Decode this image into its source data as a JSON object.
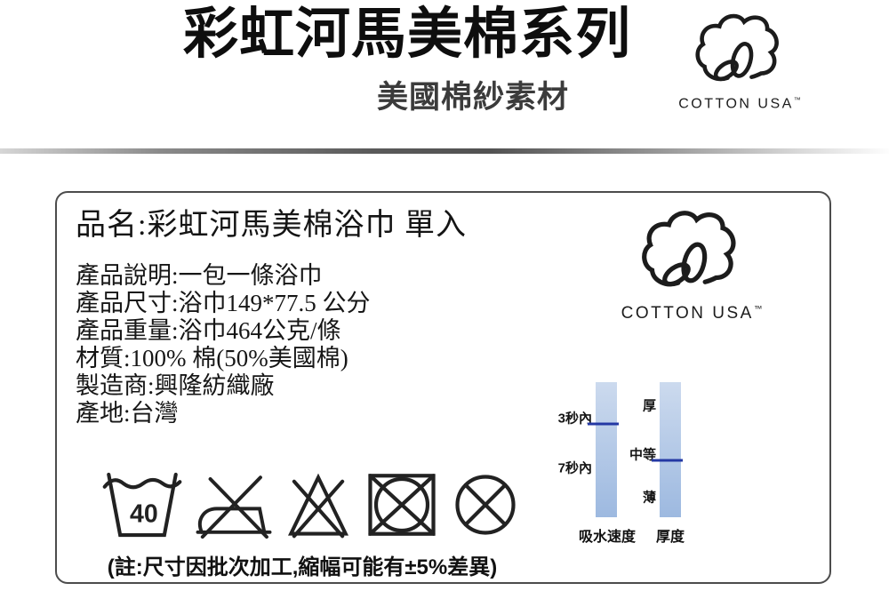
{
  "header": {
    "title": "彩虹河馬美棉系列",
    "subtitle": "美國棉紗素材",
    "cotton_logo": {
      "text": "COTTON USA",
      "tm": "™"
    }
  },
  "product_box": {
    "name_line": "品名:彩虹河馬美棉浴巾 單入",
    "details": [
      "產品說明:一包一條浴巾",
      "產品尺寸:浴巾149*77.5 公分",
      "產品重量:浴巾464公克/條",
      "材質:100% 棉(50%美國棉)",
      "製造商:興隆紡織廠",
      "產地:台灣"
    ],
    "cotton_logo": {
      "text": "COTTON USA",
      "tm": "™"
    },
    "care_symbols": {
      "wash_temp": "40",
      "icons": [
        "machine-wash-40",
        "do-not-iron",
        "do-not-bleach",
        "do-not-tumble-dry",
        "do-not-dry-clean"
      ]
    },
    "note": "(註:尺寸因批次加工,縮幅可能有±5%差異)"
  },
  "chart_data": {
    "type": "bar",
    "title": "",
    "bars": [
      {
        "name": "吸水速度",
        "scale": [
          "3秒內",
          "7秒內"
        ],
        "scale_positions_pct": [
          26,
          63
        ],
        "marker_pct_from_top": 31,
        "value": "3秒內"
      },
      {
        "name": "厚度",
        "scale": [
          "厚",
          "中等",
          "薄"
        ],
        "scale_positions_pct": [
          17,
          53,
          85
        ],
        "marker_pct_from_top": 58,
        "value": "中等"
      }
    ],
    "colors": {
      "bar_top": "#ccdaee",
      "bar_bottom": "#9db9e0",
      "marker": "#2438a4"
    }
  }
}
